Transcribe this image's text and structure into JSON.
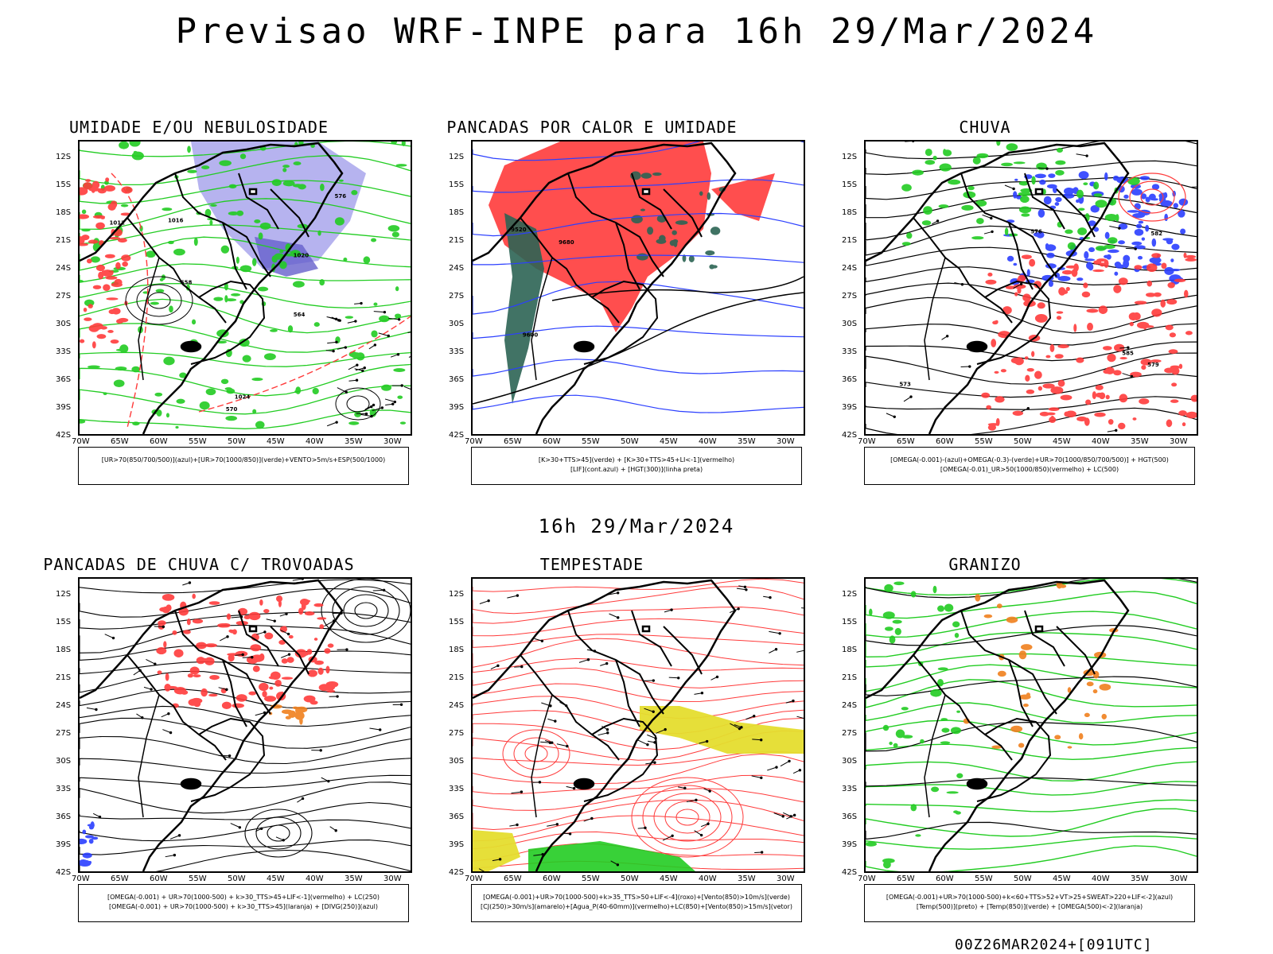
{
  "main_title": "Previsao WRF-INPE  para 16h 29/Mar/2024",
  "mid_title": "16h 29/Mar/2024",
  "footer": "00Z26MAR2024+[091UTC]",
  "axes": {
    "lat_labels": [
      "12S",
      "15S",
      "18S",
      "21S",
      "24S",
      "27S",
      "30S",
      "33S",
      "36S",
      "39S",
      "42S"
    ],
    "lon_labels": [
      "70W",
      "65W",
      "60W",
      "55W",
      "50W",
      "45W",
      "40W",
      "35W",
      "30W"
    ]
  },
  "colors": {
    "red": "#ff3b3b",
    "green": "#22cc22",
    "blue": "#2b3fff",
    "lavender": "#a9a6ec",
    "darkgreen": "#2c6454",
    "yellow": "#e5dd2e",
    "orange": "#f0801e"
  },
  "panels": [
    {
      "title": "UMIDADE E/OU NEBULOSIDADE",
      "legend": [
        "[UR>70(850/700/500)](azul)+[UR>70(1000/850)](verde)+VENTO>5m/s+ESP(500/1000)"
      ],
      "contour_labels": [
        "1012",
        "1016",
        "1020",
        "1024",
        "576",
        "570",
        "564",
        "558"
      ]
    },
    {
      "title": "PANCADAS POR CALOR E UMIDADE",
      "legend": [
        "[K>30+TTS>45](verde)  +  [K>30+TTS>45+LI<-1](vermelho)",
        "[LIF](cont.azul)  +  [HGT(300)](linha preta)"
      ],
      "contour_labels": [
        "9680",
        "9600",
        "9520"
      ]
    },
    {
      "title": "CHUVA",
      "legend": [
        "[OMEGA(-0.001)-(azul)+OMEGA(-0.3)-(verde)+UR>70(1000/850/700/500)]  +  HGT(500)",
        "[OMEGA(-0.01)_UR>50(1000/850)(vermelho)  +  LC(500)"
      ],
      "contour_labels": [
        "585",
        "582",
        "579",
        "576",
        "573"
      ]
    },
    {
      "title": "PANCADAS DE CHUVA C/ TROVOADAS",
      "legend": [
        "[OMEGA(-0.001)  +  UR>70(1000-500)  +  k>30_TTS>45+LIF<-1](vermelho)  +  LC(250)",
        "[OMEGA(-0.001)  +  UR>70(1000-500)  +  k>30_TTS>45](laranja)  +  [DIVG(250)](azul)"
      ],
      "contour_labels": []
    },
    {
      "title": "TEMPESTADE",
      "legend": [
        "[OMEGA(-0.001)+UR>70(1000-500)+k>35_TTS>50+LIF<-4](roxo)+[Vento(850)>10m/s](verde)",
        "[CJ(250)>30m/s](amarelo)+[Agua_P(40-60mm)](vermelho)+LC(850)+[Vento(850)>15m/s](vetor)"
      ],
      "contour_labels": []
    },
    {
      "title": "GRANIZO",
      "legend": [
        "[OMEGA(-0.001)+UR>70(1000-500)+k<60+TTS>52+VT>25+SWEAT>220+LIF<-2](azul)",
        "[Temp(500)](preto)  +  [Temp(850)](verde)  +  [OMEGA(500)<-2](laranja)"
      ],
      "contour_labels": []
    }
  ]
}
